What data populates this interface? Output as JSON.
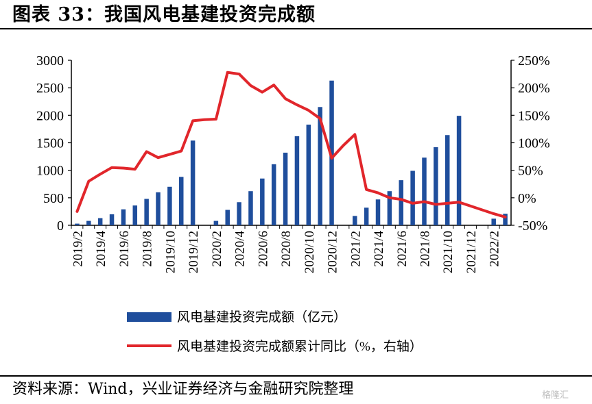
{
  "header": {
    "title": "图表 33：我国风电基建投资完成额"
  },
  "footer": {
    "source": "资料来源：Wind，兴业证券经济与金融研究院整理",
    "watermark": "格隆汇"
  },
  "colors": {
    "bar": "#1f4e9c",
    "line": "#e1262b"
  },
  "chart_data": {
    "type": "bar",
    "categories": [
      "2019/2",
      "2019/3",
      "2019/4",
      "2019/5",
      "2019/6",
      "2019/7",
      "2019/8",
      "2019/9",
      "2019/10",
      "2019/11",
      "2019/12",
      "2020/1",
      "2020/2",
      "2020/3",
      "2020/4",
      "2020/5",
      "2020/6",
      "2020/7",
      "2020/8",
      "2020/9",
      "2020/10",
      "2020/11",
      "2020/12",
      "2021/1",
      "2021/2",
      "2021/3",
      "2021/4",
      "2021/5",
      "2021/6",
      "2021/7",
      "2021/8",
      "2021/9",
      "2021/10",
      "2021/11",
      "2021/12",
      "2022/1",
      "2022/2",
      "2022/3"
    ],
    "x_tick_labels": [
      "2019/2",
      "2019/4",
      "2019/6",
      "2019/8",
      "2019/10",
      "2019/12",
      "2020/2",
      "2020/4",
      "2020/6",
      "2020/8",
      "2020/10",
      "2020/12",
      "2021/2",
      "2021/4",
      "2021/6",
      "2021/8",
      "2021/10",
      "2021/12",
      "2022/2"
    ],
    "y_left": {
      "ylim": [
        0,
        3000
      ],
      "ticks": [
        "0",
        "500",
        "1000",
        "1500",
        "2000",
        "2500",
        "3000"
      ]
    },
    "y_right": {
      "ylim": [
        -50,
        250
      ],
      "ticks": [
        "-50%",
        "0%",
        "50%",
        "100%",
        "150%",
        "200%",
        "250%"
      ]
    },
    "series": [
      {
        "name": "风电基建投资完成额（亿元）",
        "type": "bar",
        "axis": "left",
        "values": [
          30,
          80,
          130,
          200,
          290,
          360,
          480,
          600,
          700,
          880,
          1540,
          null,
          80,
          280,
          420,
          620,
          850,
          1110,
          1320,
          1620,
          1830,
          2150,
          2630,
          null,
          170,
          320,
          470,
          620,
          820,
          990,
          1230,
          1420,
          1640,
          1990,
          null,
          null,
          120,
          210
        ]
      },
      {
        "name": "风电基建投资完成额累计同比（%，右轴）",
        "type": "line",
        "axis": "right",
        "values": [
          -25,
          30,
          43,
          55,
          54,
          52,
          84,
          73,
          79,
          85,
          140,
          142,
          143,
          228,
          225,
          204,
          192,
          205,
          180,
          169,
          159,
          144,
          72,
          95,
          115,
          15,
          9,
          0,
          -3,
          -10,
          -7,
          -12,
          -10,
          -8,
          -15,
          -22,
          -29,
          -35
        ]
      }
    ],
    "legend_position": "bottom"
  }
}
